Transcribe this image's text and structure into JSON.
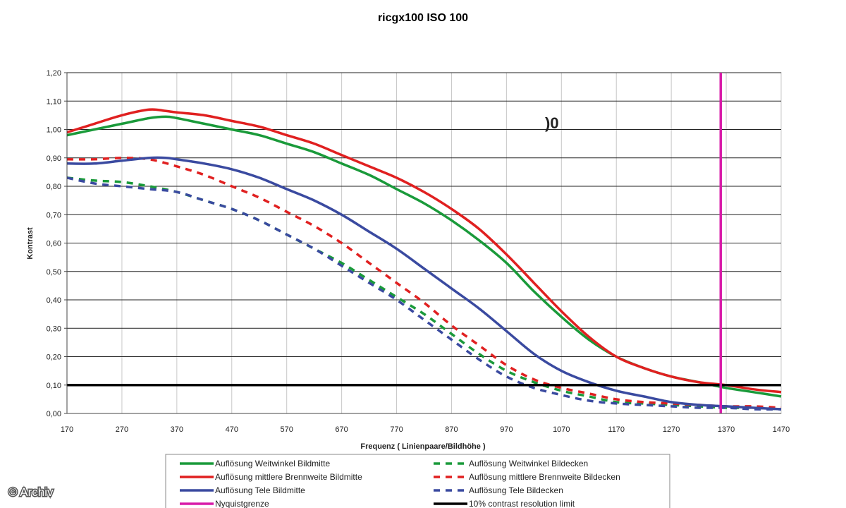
{
  "chart_data": {
    "type": "line",
    "title": "ricgx100 ISO 100",
    "xlabel": "Frequenz ( Linienpaare/Bildhöhe )",
    "ylabel": "Kontrast",
    "xlim": [
      170,
      1470
    ],
    "ylim": [
      0,
      1.2
    ],
    "x_ticks": [
      "170",
      "270",
      "370",
      "470",
      "570",
      "670",
      "770",
      "870",
      "970",
      "1070",
      "1170",
      "1270",
      "1370",
      "1470"
    ],
    "y_ticks": [
      "0,00",
      "0,10",
      "0,20",
      "0,30",
      "0,40",
      "0,50",
      "0,60",
      "0,70",
      "0,80",
      "0,90",
      "1,00",
      "1,10",
      "1,20"
    ],
    "grid": true,
    "legend_placement": "bottom",
    "annotation": ")0",
    "series": [
      {
        "name": "Auflösung Weitwinkel Bildmitte",
        "color": "#1a9a3a",
        "style": "solid",
        "x": [
          170,
          220,
          270,
          320,
          350,
          370,
          420,
          470,
          520,
          570,
          620,
          670,
          720,
          770,
          820,
          870,
          920,
          970,
          1020,
          1070,
          1120,
          1170,
          1220,
          1270,
          1320,
          1370,
          1420,
          1470
        ],
        "y": [
          0.98,
          1.0,
          1.02,
          1.04,
          1.045,
          1.04,
          1.02,
          1.0,
          0.98,
          0.95,
          0.92,
          0.88,
          0.84,
          0.79,
          0.74,
          0.68,
          0.61,
          0.53,
          0.43,
          0.34,
          0.26,
          0.2,
          0.16,
          0.13,
          0.11,
          0.09,
          0.075,
          0.06
        ]
      },
      {
        "name": "Auflösung mittlere Brennweite Bildmitte",
        "color": "#e02020",
        "style": "solid",
        "x": [
          170,
          220,
          270,
          320,
          350,
          370,
          420,
          470,
          520,
          570,
          620,
          670,
          720,
          770,
          820,
          870,
          920,
          970,
          1020,
          1070,
          1120,
          1170,
          1220,
          1270,
          1320,
          1370,
          1420,
          1470
        ],
        "y": [
          0.99,
          1.02,
          1.05,
          1.07,
          1.065,
          1.06,
          1.05,
          1.03,
          1.01,
          0.98,
          0.95,
          0.91,
          0.87,
          0.83,
          0.78,
          0.72,
          0.65,
          0.56,
          0.46,
          0.36,
          0.27,
          0.2,
          0.16,
          0.13,
          0.11,
          0.1,
          0.085,
          0.075
        ]
      },
      {
        "name": "Auflösung Tele Bildmitte",
        "color": "#3a4aa0",
        "style": "solid",
        "x": [
          170,
          220,
          270,
          320,
          350,
          370,
          420,
          470,
          520,
          570,
          620,
          670,
          720,
          770,
          820,
          870,
          920,
          970,
          1020,
          1070,
          1120,
          1170,
          1220,
          1270,
          1320,
          1370,
          1420,
          1470
        ],
        "y": [
          0.88,
          0.88,
          0.89,
          0.9,
          0.9,
          0.895,
          0.88,
          0.86,
          0.83,
          0.79,
          0.75,
          0.7,
          0.64,
          0.58,
          0.51,
          0.44,
          0.37,
          0.29,
          0.21,
          0.15,
          0.11,
          0.08,
          0.06,
          0.04,
          0.03,
          0.025,
          0.02,
          0.015
        ]
      },
      {
        "name": "Auflösung Weitwinkel Bildecken",
        "color": "#1a9a3a",
        "style": "dashed",
        "x": [
          170,
          220,
          270,
          320,
          370,
          420,
          470,
          520,
          570,
          620,
          670,
          720,
          770,
          820,
          870,
          920,
          970,
          1020,
          1070,
          1120,
          1170,
          1220,
          1270,
          1320,
          1370,
          1420,
          1470
        ],
        "y": [
          0.83,
          0.82,
          0.815,
          0.8,
          0.78,
          0.75,
          0.72,
          0.68,
          0.63,
          0.58,
          0.53,
          0.47,
          0.41,
          0.35,
          0.28,
          0.21,
          0.15,
          0.11,
          0.08,
          0.06,
          0.04,
          0.035,
          0.03,
          0.025,
          0.02,
          0.02,
          0.015
        ]
      },
      {
        "name": "Auflösung mittlere Brennweite Bildecken",
        "color": "#e02020",
        "style": "dashed",
        "x": [
          170,
          220,
          270,
          320,
          370,
          420,
          470,
          520,
          570,
          620,
          670,
          720,
          770,
          820,
          870,
          920,
          970,
          1020,
          1070,
          1120,
          1170,
          1220,
          1270,
          1320,
          1370,
          1420,
          1470
        ],
        "y": [
          0.895,
          0.895,
          0.9,
          0.895,
          0.87,
          0.84,
          0.8,
          0.76,
          0.71,
          0.66,
          0.6,
          0.53,
          0.46,
          0.39,
          0.31,
          0.24,
          0.17,
          0.12,
          0.09,
          0.07,
          0.05,
          0.04,
          0.035,
          0.03,
          0.025,
          0.025,
          0.02
        ]
      },
      {
        "name": "Auflösung Tele Bildecken",
        "color": "#3a4aa0",
        "style": "dashed",
        "x": [
          170,
          220,
          270,
          320,
          370,
          420,
          470,
          520,
          570,
          620,
          670,
          720,
          770,
          820,
          870,
          920,
          970,
          1020,
          1070,
          1120,
          1170,
          1220,
          1270,
          1320,
          1370,
          1420,
          1470
        ],
        "y": [
          0.83,
          0.81,
          0.8,
          0.79,
          0.78,
          0.75,
          0.72,
          0.68,
          0.63,
          0.58,
          0.52,
          0.46,
          0.4,
          0.33,
          0.26,
          0.19,
          0.13,
          0.09,
          0.065,
          0.045,
          0.035,
          0.03,
          0.025,
          0.02,
          0.02,
          0.015,
          0.015
        ]
      },
      {
        "name": "Nyquistgrenze",
        "color": "#d81ba8",
        "style": "vertical",
        "x": [
          1360
        ]
      },
      {
        "name": "10% contrast resolution limit",
        "color": "#000000",
        "style": "horizontal",
        "y": [
          0.1
        ]
      }
    ]
  },
  "watermark": "© Archiv"
}
